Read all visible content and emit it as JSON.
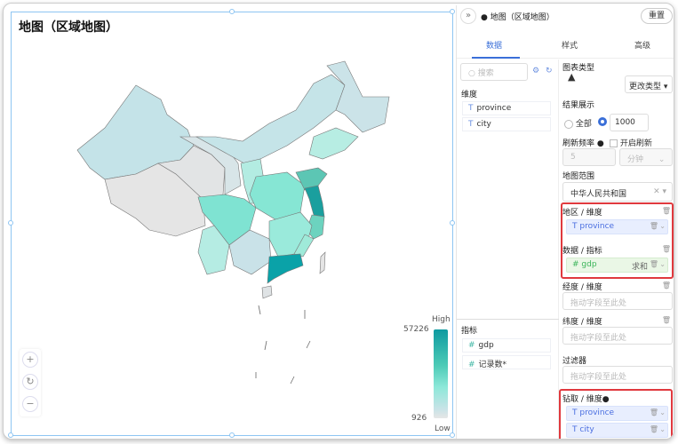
{
  "chart": {
    "title": "地图（区域地图）",
    "legend": {
      "high_label": "High",
      "low_label": "Low",
      "max": "57226",
      "min": "926"
    },
    "colors": {
      "high": "#0e9aa0",
      "low": "#e6e6e6"
    }
  },
  "chart_data": {
    "type": "heatmap",
    "title": "地图（区域地图）",
    "map_scope": "中华人民共和国",
    "dimension": "province",
    "measure": "gdp",
    "value_range": [
      926,
      57226
    ],
    "legend": {
      "high": "High",
      "low": "Low"
    }
  },
  "zoom_controls": {
    "zoom_in": "+",
    "reset": "↻",
    "zoom_out": "−"
  },
  "panel": {
    "expand_icon": "»",
    "title": "地图（区域地图）",
    "reset_label": "重置",
    "tabs": [
      {
        "label": "数据"
      },
      {
        "label": "样式"
      },
      {
        "label": "高级"
      }
    ],
    "search_placeholder": "搜索",
    "dimensions_label": "维度",
    "dimensions": [
      {
        "type": "T",
        "name": "province"
      },
      {
        "type": "T",
        "name": "city"
      }
    ],
    "measures_label": "指标",
    "measures": [
      {
        "type": "#",
        "name": "gdp"
      },
      {
        "type": "#",
        "name": "记录数*"
      }
    ],
    "chart_type_label": "图表类型",
    "change_type_label": "更改类型",
    "result_label": "结果展示",
    "result_all": "全部",
    "result_limit": "1000",
    "refresh_label": "刷新频率",
    "auto_refresh_label": "开启刷新",
    "refresh_value": "5",
    "refresh_unit": "分钟",
    "map_scope_label": "地图范围",
    "map_scope": "中华人民共和国",
    "region_label": "地区 / 维度",
    "region_field": "province",
    "data_label": "数据 / 指标",
    "data_field": "gdp",
    "data_agg": "求和",
    "lng_label": "经度 / 维度",
    "lat_label": "纬度 / 维度",
    "filter_label": "过滤器",
    "drop_placeholder": "拖动字段至此处",
    "drill_label": "钻取 / 维度",
    "drill_fields": [
      "province",
      "city"
    ]
  }
}
